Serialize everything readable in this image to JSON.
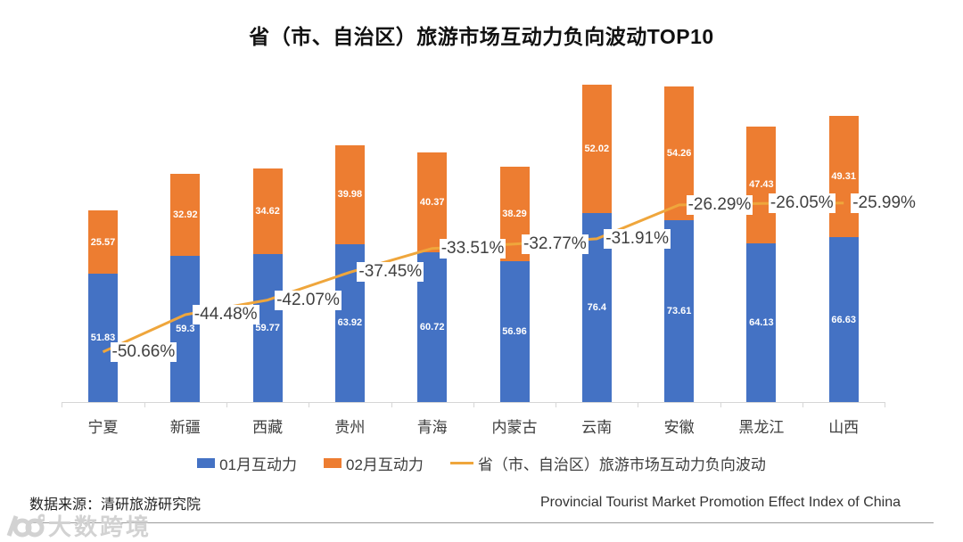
{
  "title": "省（市、自治区）旅游市场互动力负向波动TOP10",
  "chart_data": {
    "type": "combo",
    "subtype": "stacked-bar-with-line",
    "title": "省（市、自治区）旅游市场互动力负向波动TOP10",
    "categories": [
      "宁夏",
      "新疆",
      "西藏",
      "贵州",
      "青海",
      "内蒙古",
      "云南",
      "安徽",
      "黑龙江",
      "山西"
    ],
    "series": [
      {
        "name": "01月互动力",
        "type": "bar",
        "color": "#4472C4",
        "values": [
          51.83,
          59.3,
          59.77,
          63.92,
          60.72,
          56.96,
          76.4,
          73.61,
          64.13,
          66.63
        ],
        "labels": [
          "51.83",
          "59.3",
          "59.77",
          "63.92",
          "60.72",
          "56.96",
          "76.4",
          "73.61",
          "64.13",
          "66.63"
        ]
      },
      {
        "name": "02月互动力",
        "type": "bar",
        "color": "#ED7D31",
        "values": [
          25.57,
          32.92,
          34.62,
          39.98,
          40.37,
          38.29,
          52.02,
          54.26,
          47.43,
          49.31
        ],
        "labels": [
          "25.57",
          "32.92",
          "34.62",
          "39.98",
          "40.37",
          "38.29",
          "52.02",
          "54.26",
          "47.43",
          "49.31"
        ]
      },
      {
        "name": "省（市、自治区）旅游市场互动力负向波动",
        "type": "line",
        "color": "#EFA63C",
        "values": [
          -50.66,
          -44.48,
          -42.07,
          -37.45,
          -33.51,
          -32.77,
          -31.91,
          -26.29,
          -26.05,
          -25.99
        ],
        "labels": [
          "-50.66%",
          "-44.48%",
          "-42.07%",
          "-37.45%",
          "-33.51%",
          "-32.77%",
          "-31.91%",
          "-26.29%",
          "-26.05%",
          "-25.99%"
        ]
      }
    ],
    "primary_axis": {
      "min": 0,
      "max": 144,
      "visible": false
    },
    "secondary_axis": {
      "min": -60,
      "max": 0,
      "format": "percent",
      "visible": false
    },
    "grid": false,
    "legend_position": "bottom",
    "bar_label_color": "#ffffff",
    "line_label_color": "#404040",
    "axis_line_color": "#d6d6d6"
  },
  "footer": {
    "source": "数据来源：清研旅游研究院",
    "right_note": "Provincial Tourist Market Promotion Effect Index of China"
  },
  "watermark": {
    "logo": "100-circles-logo",
    "text": "大数跨境"
  }
}
